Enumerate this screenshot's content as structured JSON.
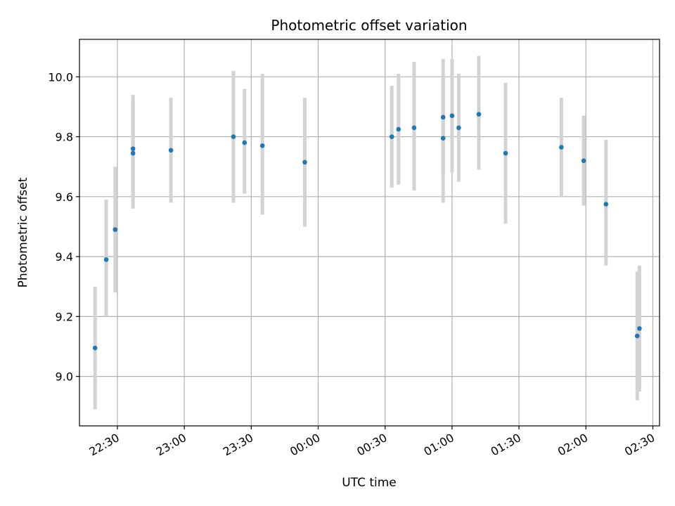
{
  "chart_data": {
    "type": "scatter",
    "title": "Photometric offset variation",
    "xlabel": "UTC time",
    "ylabel": "Photometric offset",
    "grid": true,
    "xlim": [
      "22:13",
      "02:33"
    ],
    "ylim": [
      8.835,
      10.125
    ],
    "x_ticks": [
      "22:30",
      "23:00",
      "23:30",
      "00:00",
      "00:30",
      "01:00",
      "01:30",
      "02:00",
      "02:30"
    ],
    "y_ticks": [
      "9.0",
      "9.2",
      "9.4",
      "9.6",
      "9.8",
      "10.0"
    ],
    "marker_color": "#1f77b4",
    "errorbar_color": "#d3d3d3",
    "points": [
      {
        "t": "22:20",
        "y": 9.095,
        "lo": 8.89,
        "hi": 9.3
      },
      {
        "t": "22:25",
        "y": 9.39,
        "lo": 9.2,
        "hi": 9.59
      },
      {
        "t": "22:29",
        "y": 9.49,
        "lo": 9.28,
        "hi": 9.7
      },
      {
        "t": "22:37",
        "y": 9.76,
        "lo": 9.59,
        "hi": 9.93
      },
      {
        "t": "22:37",
        "y": 9.745,
        "lo": 9.56,
        "hi": 9.94
      },
      {
        "t": "22:54",
        "y": 9.755,
        "lo": 9.58,
        "hi": 9.93
      },
      {
        "t": "23:22",
        "y": 9.8,
        "lo": 9.58,
        "hi": 10.02
      },
      {
        "t": "23:27",
        "y": 9.78,
        "lo": 9.61,
        "hi": 9.96
      },
      {
        "t": "23:35",
        "y": 9.77,
        "lo": 9.54,
        "hi": 10.01
      },
      {
        "t": "23:54",
        "y": 9.715,
        "lo": 9.5,
        "hi": 9.93
      },
      {
        "t": "00:33",
        "y": 9.8,
        "lo": 9.63,
        "hi": 9.97
      },
      {
        "t": "00:36",
        "y": 9.825,
        "lo": 9.64,
        "hi": 10.01
      },
      {
        "t": "00:43",
        "y": 9.83,
        "lo": 9.62,
        "hi": 10.05
      },
      {
        "t": "00:56",
        "y": 9.795,
        "lo": 9.58,
        "hi": 10.01
      },
      {
        "t": "00:56",
        "y": 9.865,
        "lo": 9.67,
        "hi": 10.06
      },
      {
        "t": "01:00",
        "y": 9.87,
        "lo": 9.68,
        "hi": 10.06
      },
      {
        "t": "01:03",
        "y": 9.83,
        "lo": 9.65,
        "hi": 10.01
      },
      {
        "t": "01:12",
        "y": 9.875,
        "lo": 9.69,
        "hi": 10.07
      },
      {
        "t": "01:24",
        "y": 9.745,
        "lo": 9.51,
        "hi": 9.98
      },
      {
        "t": "01:49",
        "y": 9.765,
        "lo": 9.6,
        "hi": 9.93
      },
      {
        "t": "01:59",
        "y": 9.72,
        "lo": 9.57,
        "hi": 9.87
      },
      {
        "t": "02:09",
        "y": 9.575,
        "lo": 9.37,
        "hi": 9.79
      },
      {
        "t": "02:23",
        "y": 9.135,
        "lo": 8.92,
        "hi": 9.35
      },
      {
        "t": "02:24",
        "y": 9.16,
        "lo": 8.95,
        "hi": 9.37
      }
    ]
  }
}
